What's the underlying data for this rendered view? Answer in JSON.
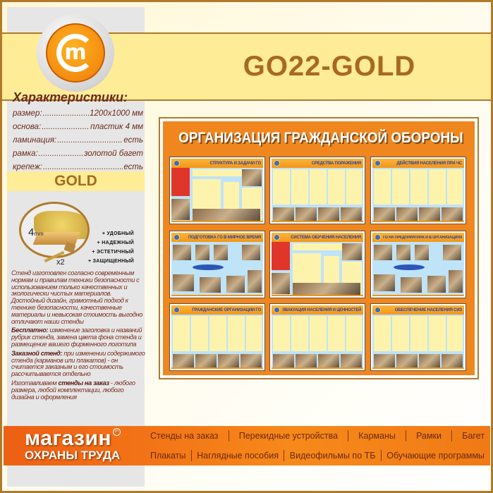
{
  "product": {
    "code": "GO22-GOLD",
    "variant": "GOLD"
  },
  "logo": {
    "letter": "m"
  },
  "characteristics": {
    "title": "Характеристики:",
    "rows": [
      {
        "label": "размер:",
        "value": "1200x1000  мм"
      },
      {
        "label": "основа:",
        "value": "пластик 4 мм"
      },
      {
        "label": "ламинация:",
        "value": "есть"
      },
      {
        "label": "рамка:",
        "value": "золотой багет"
      },
      {
        "label": "крепеж:",
        "value": "есть"
      }
    ]
  },
  "mount": {
    "thickness": "4",
    "unit": "mm",
    "count": "x2"
  },
  "benefits": [
    "+ УДОБНЫЙ",
    "+ НАДЕЖНЫЙ",
    "+ ЭСТЕТИЧНЫЙ",
    "+ ЗАЩИЩЕННЫЙ"
  ],
  "description": {
    "intro": "Стенд изготовлен согласно современным нормам и правилам техники безопасности с использованием только качественных и экологически чистых материалов. Достойный дизайн, грамотный подход к технике безопасности, качественные материалы и невысокая стоимость выгодно отличают наши стенды",
    "free_label": "Бесплатно:",
    "free_text": " изменение заголовка и названий рубрик стенда, замена цвета фона стенда и размещение вашего фирменного логотипа",
    "custom_label": "Заказной стенд:",
    "custom_text": " при изменении содержимого стенда (карманов или плакатов) - он считается заказным и его стоимость рассчитывается отдельно",
    "order_prefix": "Изготавливаем ",
    "order_label": "стенды на заказ",
    "order_text": " - любого размера, любой комплектации, любого дизайна и оформления"
  },
  "stand": {
    "title": "ОРГАНИЗАЦИЯ ГРАЖДАНСКОЙ ОБОРОНЫ",
    "panels": [
      "СТРУКТУРА И ЗАДАЧИ ГО",
      "СРЕДСТВА ПОРАЖЕНИЯ",
      "ДЕЙСТВИЯ НАСЕЛЕНИЯ ПРИ ЧС",
      "ПОДГОТОВКА ГО В МИРНОЕ ВРЕМЯ",
      "СИСТЕМА ОБУЧЕНИЯ НАСЕЛЕНИЯ",
      "ГО НА ПРЕДПРИЯТИЯХ И В ОРГАНИЗАЦИЯХ",
      "ГРАЖДАНСКИЕ ОРГАНИЗАЦИИ ГО",
      "ЭВАКУАЦИЯ НАСЕЛЕНИЯ И ЦЕННОСТЕЙ",
      "ОБЕСПЕЧЕНИЕ НАСЕЛЕНИЯ СИЗ"
    ],
    "colors": {
      "background": "#f0861e",
      "panel_body": "#bfe3f7",
      "panel_title_text": "#2342a8"
    }
  },
  "footer": {
    "brand_line1": "магазин",
    "brand_line2": "ОХРАНЫ ТРУДА",
    "brand_mark": "m",
    "row1": [
      "Стенды на заказ",
      "Перекидные устройства",
      "Карманы",
      "Рамки",
      "Багет"
    ],
    "row2": [
      "Плакаты",
      "Наглядные пособия",
      "Видеофильмы по ТБ",
      "Обучающие программы"
    ]
  }
}
